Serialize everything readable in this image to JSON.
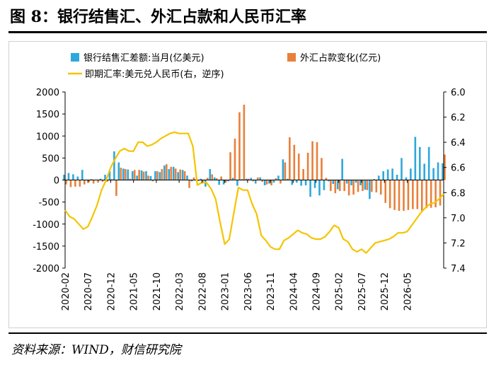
{
  "figure": {
    "title": "图 8：银行结售汇、外汇占款和人民币汇率",
    "source": "资料来源：WIND，财信研究院"
  },
  "colors": {
    "bar_fx": "#2ea8dc",
    "bar_reserve": "#e8803a",
    "line_rate": "#f5c400",
    "axis": "#000000"
  },
  "chart_data": {
    "type": "bar",
    "title": "",
    "legend": [
      {
        "key": "fx",
        "label": "银行结售汇差额:当月(亿美元)"
      },
      {
        "key": "reserve",
        "label": "外汇占款变化(亿元)"
      },
      {
        "key": "rate",
        "label": "即期汇率:美元兑人民币(右，逆序)"
      }
    ],
    "legend_position": "top",
    "ylim_left": [
      -2000,
      2000
    ],
    "yticks_left": [
      "2000",
      "1500",
      "1000",
      "500",
      "0",
      "-500",
      "-1000",
      "-1500",
      "-2000"
    ],
    "ylim_right": [
      6.0,
      7.4
    ],
    "right_axis_reversed": true,
    "yticks_right": [
      "6.0",
      "6.2",
      "6.4",
      "6.6",
      "6.8",
      "7.0",
      "7.2",
      "7.4"
    ],
    "xtick_labels": [
      "2020-02",
      "2020-07",
      "2020-12",
      "2021-05",
      "2021-10",
      "2022-03",
      "2022-08",
      "2023-01",
      "2023-06",
      "2023-11",
      "2024-04",
      "2024-09",
      "2025-02",
      "2025-07",
      "2025-12",
      "2026-05"
    ],
    "x_start": "2020-02",
    "x_end": "2026-05",
    "series": [
      {
        "name": "银行结售汇差额:当月(亿美元)",
        "kind": "bar",
        "values": [
          120,
          160,
          130,
          80,
          230,
          -10,
          20,
          10,
          30,
          120,
          200,
          650,
          400,
          260,
          240,
          200,
          100,
          220,
          200,
          90,
          200,
          180,
          330,
          250,
          300,
          180,
          230,
          100,
          -30,
          10,
          30,
          -150,
          250,
          60,
          -110,
          -100,
          -30,
          50,
          -130,
          20,
          30,
          50,
          -80,
          60,
          -120,
          -80,
          -60,
          100,
          470,
          30,
          -110,
          -60,
          -130,
          -120,
          -380,
          -180,
          -350,
          -230,
          -30,
          -90,
          -210,
          480,
          -80,
          -120,
          -60,
          -120,
          -220,
          -430,
          20,
          100,
          200,
          240,
          260,
          120,
          500,
          60,
          260,
          980,
          750,
          370,
          750,
          270,
          400,
          380
        ]
      },
      {
        "name": "外汇占款变化(亿元)",
        "kind": "bar",
        "values": [
          -100,
          -160,
          -150,
          -150,
          -100,
          -50,
          -80,
          -60,
          -40,
          -40,
          20,
          -360,
          280,
          250,
          30,
          230,
          230,
          190,
          100,
          -30,
          200,
          250,
          360,
          300,
          260,
          240,
          200,
          -180,
          60,
          -20,
          -40,
          50,
          130,
          40,
          80,
          -60,
          630,
          940,
          1540,
          1710,
          30,
          -30,
          60,
          -40,
          -100,
          -120,
          40,
          -80,
          400,
          970,
          800,
          600,
          250,
          620,
          880,
          860,
          500,
          50,
          -250,
          -300,
          -250,
          -250,
          -350,
          -330,
          -270,
          -250,
          -230,
          -270,
          -280,
          -330,
          -520,
          -640,
          -680,
          -700,
          -700,
          -680,
          -660,
          -660,
          -700,
          -640,
          -630,
          -620,
          -580,
          580
        ]
      },
      {
        "name": "即期汇率:美元兑人民币(右，逆序)",
        "kind": "line",
        "values": [
          6.94,
          6.99,
          7.01,
          7.05,
          7.09,
          7.07,
          6.99,
          6.9,
          6.78,
          6.7,
          6.6,
          6.53,
          6.47,
          6.45,
          6.47,
          6.47,
          6.4,
          6.4,
          6.43,
          6.42,
          6.4,
          6.37,
          6.35,
          6.33,
          6.32,
          6.33,
          6.33,
          6.33,
          6.43,
          6.74,
          6.72,
          6.72,
          6.77,
          6.85,
          7.04,
          7.21,
          7.17,
          6.96,
          6.76,
          6.78,
          6.78,
          6.89,
          6.97,
          7.14,
          7.18,
          7.23,
          7.25,
          7.25,
          7.18,
          7.16,
          7.13,
          7.1,
          7.12,
          7.13,
          7.16,
          7.17,
          7.17,
          7.15,
          7.11,
          7.06,
          7.08,
          7.17,
          7.19,
          7.25,
          7.27,
          7.25,
          7.28,
          7.24,
          7.2,
          7.19,
          7.18,
          7.17,
          7.15,
          7.12,
          7.12,
          7.11,
          7.06,
          7.01,
          6.96,
          6.92,
          6.89,
          6.88,
          6.85,
          6.81
        ]
      }
    ]
  }
}
